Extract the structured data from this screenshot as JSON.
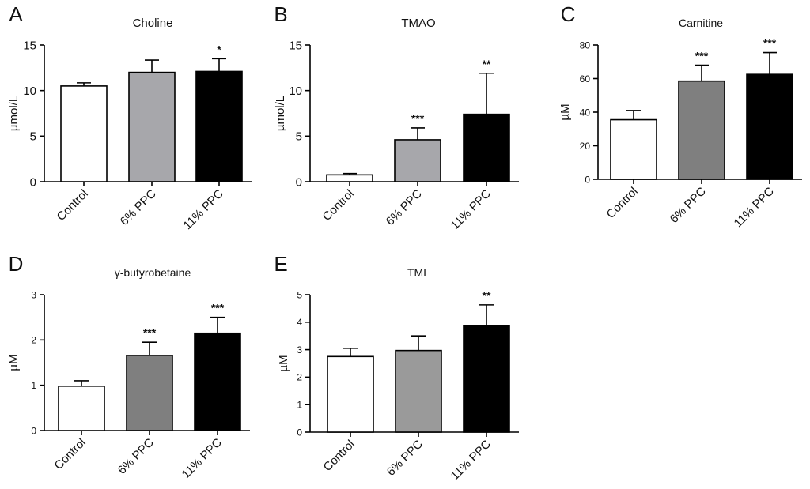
{
  "chart_data": [
    {
      "panel": "A",
      "type": "bar",
      "title": "Choline",
      "ylabel": "µmol/L",
      "xlabel": "",
      "categories": [
        "Control",
        "6% PPC",
        "11% PPC"
      ],
      "values": [
        10.5,
        12.0,
        12.1
      ],
      "errors": [
        0.35,
        1.35,
        1.4
      ],
      "significance": [
        "",
        "",
        "*"
      ],
      "bar_colors": [
        "#ffffff",
        "#a7a7ab",
        "#000000"
      ],
      "ylim": [
        0,
        15
      ],
      "yticks": [
        "0",
        "5",
        "10",
        "15"
      ],
      "grid": false
    },
    {
      "panel": "B",
      "type": "bar",
      "title": "TMAO",
      "ylabel": "µmol/L",
      "xlabel": "",
      "categories": [
        "Control",
        "6% PPC",
        "11% PPC"
      ],
      "values": [
        0.75,
        4.6,
        7.4
      ],
      "errors": [
        0.15,
        1.3,
        4.5
      ],
      "significance": [
        "",
        "***",
        "**"
      ],
      "bar_colors": [
        "#ffffff",
        "#a7a7ab",
        "#000000"
      ],
      "ylim": [
        0,
        15
      ],
      "yticks": [
        "0",
        "5",
        "10",
        "15"
      ],
      "grid": false
    },
    {
      "panel": "C",
      "type": "bar",
      "title": "Carnitine",
      "ylabel": "µM",
      "xlabel": "",
      "categories": [
        "Control",
        "6% PPC",
        "11% PPC"
      ],
      "values": [
        35.5,
        58.5,
        62.5
      ],
      "errors": [
        5.5,
        9.5,
        13.0
      ],
      "significance": [
        "",
        "***",
        "***"
      ],
      "bar_colors": [
        "#ffffff",
        "#7f7f7f",
        "#000000"
      ],
      "ylim": [
        0,
        80
      ],
      "yticks": [
        "0",
        "20",
        "40",
        "60",
        "80"
      ],
      "grid": false
    },
    {
      "panel": "D",
      "type": "bar",
      "title": "γ-butyrobetaine",
      "ylabel": "µM",
      "xlabel": "",
      "categories": [
        "Control",
        "6% PPC",
        "11% PPC"
      ],
      "values": [
        0.98,
        1.66,
        2.15
      ],
      "errors": [
        0.12,
        0.29,
        0.35
      ],
      "significance": [
        "",
        "***",
        "***"
      ],
      "bar_colors": [
        "#ffffff",
        "#7f7f7f",
        "#000000"
      ],
      "ylim": [
        0,
        3
      ],
      "yticks": [
        "0",
        "1",
        "2",
        "3"
      ],
      "grid": false
    },
    {
      "panel": "E",
      "type": "bar",
      "title": "TML",
      "ylabel": "µM",
      "xlabel": "",
      "categories": [
        "Control",
        "6% PPC",
        "11% PPC"
      ],
      "values": [
        2.75,
        2.97,
        3.86
      ],
      "errors": [
        0.3,
        0.53,
        0.77
      ],
      "significance": [
        "",
        "",
        "**"
      ],
      "bar_colors": [
        "#ffffff",
        "#9a9a9a",
        "#000000"
      ],
      "ylim": [
        0,
        5
      ],
      "yticks": [
        "0",
        "1",
        "2",
        "3",
        "4",
        "5"
      ],
      "grid": false
    }
  ]
}
